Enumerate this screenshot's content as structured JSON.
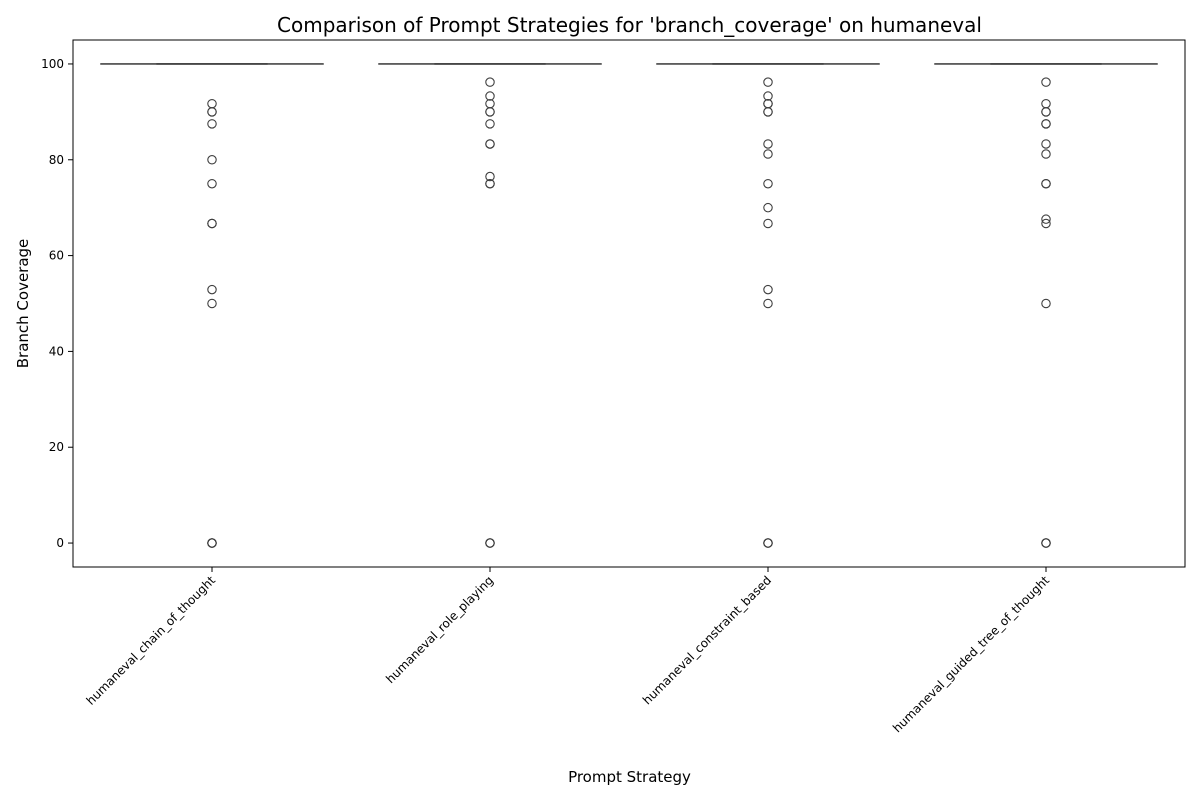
{
  "chart_data": {
    "type": "box",
    "title": "Comparison of Prompt Strategies for 'branch_coverage' on humaneval",
    "xlabel": "Prompt Strategy",
    "ylabel": "Branch Coverage",
    "ylim": [
      -5,
      105
    ],
    "yticks": [
      0,
      20,
      40,
      60,
      80,
      100
    ],
    "grid": false,
    "legend": "none",
    "colors": {
      "box_line": "#3f3f3f",
      "outlier_edge": "#3f3f3f",
      "axis": "#000000"
    },
    "categories": [
      "humaneval_chain_of_thought",
      "humaneval_role_playing",
      "humaneval_constraint_based",
      "humaneval_guided_tree_of_thought"
    ],
    "series": [
      {
        "q1": 100,
        "median": 100,
        "q3": 100,
        "whisker_low": 100,
        "whisker_high": 100,
        "outliers": [
          91.7,
          90,
          90,
          87.5,
          80,
          75,
          66.7,
          66.7,
          52.9,
          50,
          0,
          0,
          0,
          0
        ]
      },
      {
        "q1": 100,
        "median": 100,
        "q3": 100,
        "whisker_low": 100,
        "whisker_high": 100,
        "outliers": [
          96.2,
          93.3,
          91.7,
          90,
          90,
          87.5,
          83.3,
          83.3,
          76.5,
          75,
          75,
          0,
          0,
          0
        ]
      },
      {
        "q1": 100,
        "median": 100,
        "q3": 100,
        "whisker_low": 100,
        "whisker_high": 100,
        "outliers": [
          96.2,
          93.3,
          91.7,
          91.7,
          90,
          90,
          83.3,
          81.2,
          75,
          70,
          66.7,
          52.9,
          50,
          0,
          0,
          0
        ]
      },
      {
        "q1": 100,
        "median": 100,
        "q3": 100,
        "whisker_low": 100,
        "whisker_high": 100,
        "outliers": [
          96.2,
          91.7,
          90,
          90,
          87.5,
          87.5,
          83.3,
          81.2,
          75,
          75,
          67.6,
          66.7,
          50,
          0,
          0,
          0
        ]
      }
    ]
  }
}
